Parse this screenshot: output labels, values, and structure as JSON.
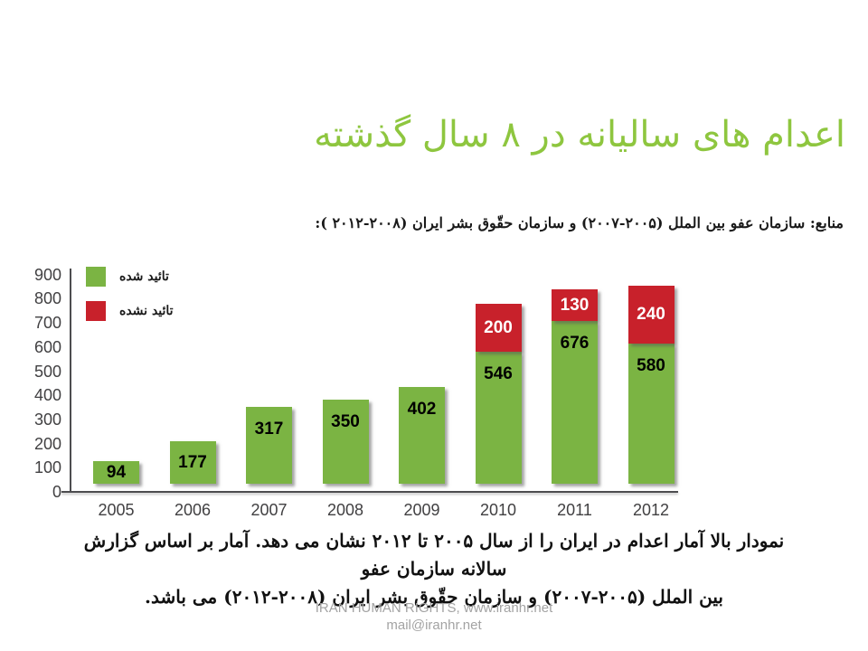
{
  "title": "اعدام های سالیانه در ۸ سال گذشته",
  "source_note": "منابع: سازمان عفو بین الملل (۲۰۰۵-۲۰۰۷) و سازمان حقّوق بشر ایران (۲۰۰۸-۲۰۱۲ ):",
  "description": {
    "line1": "نمودار بالا آمار اعدام در ایران را از سال ۲۰۰۵ تا ۲۰۱۲ نشان می دهد. آمار بر اساس گزارش سالانه سازمان عفو",
    "line2": "بین الملل (۲۰۰۵-۲۰۰۷) و سازمان حقّوق بشر ایران (۲۰۰۸-۲۰۱۲) می باشد."
  },
  "footer": {
    "line1": "IRAN HUMAN RIGHTS, www.iranhr.net",
    "line2": "mail@iranhr.net"
  },
  "colors": {
    "title_green": "#8ec63f",
    "bar_green": "#7bb443",
    "bar_red": "#c8212b",
    "axis_gray": "#4d4d4f",
    "footer_gray": "#a3a3a3"
  },
  "chart_data": {
    "type": "bar",
    "stacked": true,
    "title": "",
    "xlabel": "",
    "ylabel": "",
    "categories": [
      "2005",
      "2006",
      "2007",
      "2008",
      "2009",
      "2010",
      "2011",
      "2012"
    ],
    "series": [
      {
        "name": "تائید شده",
        "color": "#7bb443",
        "label_color": "#000000",
        "values": [
          94,
          177,
          317,
          350,
          402,
          546,
          676,
          580
        ]
      },
      {
        "name": "تائید نشده",
        "color": "#c8212b",
        "label_color": "#ffffff",
        "values": [
          null,
          null,
          null,
          null,
          null,
          200,
          130,
          240
        ]
      }
    ],
    "ylim": [
      0,
      900
    ],
    "yticks": [
      0,
      100,
      200,
      300,
      400,
      500,
      600,
      700,
      800,
      900
    ],
    "grid": false,
    "legend_position": "top-left-inside",
    "legend": [
      {
        "label": "تائید شده",
        "color": "#7bb443"
      },
      {
        "label": "تائید نشده",
        "color": "#c8212b"
      }
    ]
  }
}
